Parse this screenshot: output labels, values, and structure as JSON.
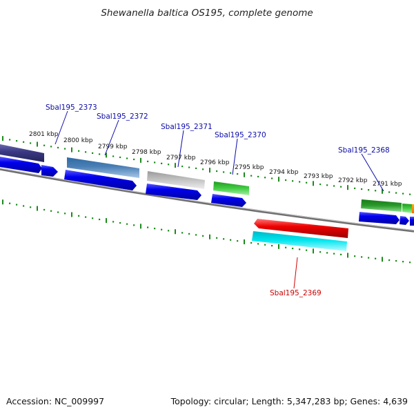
{
  "title": "Shewanella baltica OS195, complete genome",
  "footer": {
    "accession": "Accession: NC_009997",
    "summary": "Topology: circular; Length: 5,347,283 bp; Genes: 4,639"
  },
  "scale_labels": [
    "2801 kbp",
    "2800 kbp",
    "2799 kbp",
    "2798 kbp",
    "2797 kbp",
    "2796 kbp",
    "2795 kbp",
    "2794 kbp",
    "2793 kbp",
    "2792 kbp",
    "2791 kbp"
  ],
  "gene_labels": {
    "g2373": "Sbal195_2373",
    "g2372": "Sbal195_2372",
    "g2371": "Sbal195_2371",
    "g2370": "Sbal195_2370",
    "g2369": "Sbal195_2369",
    "g2368": "Sbal195_2368"
  },
  "colors": {
    "cds": "#0000ee",
    "g2373": "#3b3a85",
    "g2372": "#4a7fb5",
    "g2371": "#b4b4b4",
    "g2370": "#33bb33",
    "g2369": "#ee0000",
    "g2369_cds": "#00e5ee",
    "g2368": "#2a9a2a",
    "ruler": "#1a8a1a",
    "backbone": "#777777",
    "gene_label": "#0a0aa8",
    "gene_label_red": "#cc0000"
  }
}
